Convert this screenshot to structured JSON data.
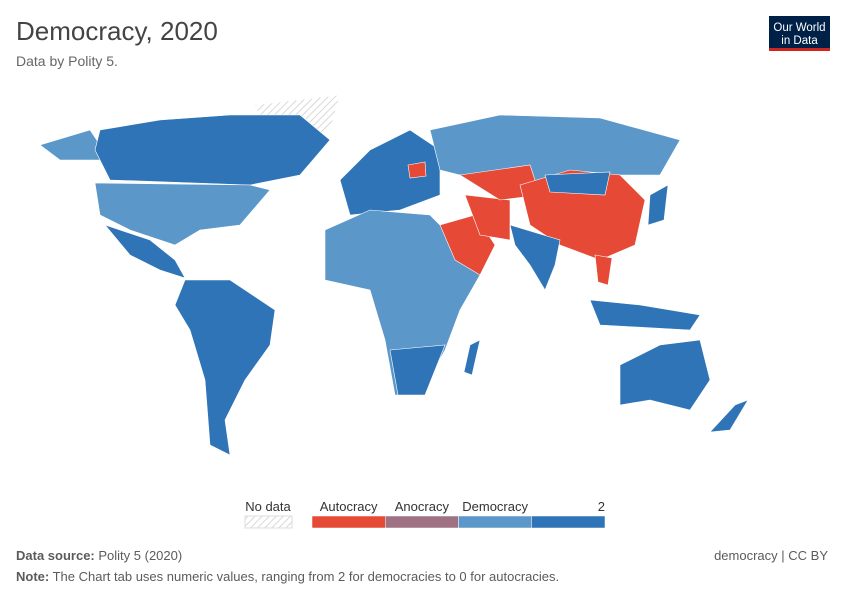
{
  "header": {
    "title": "Democracy, 2020",
    "subtitle": "Data by Polity 5."
  },
  "logo": {
    "lines": [
      "Our World",
      "in Data"
    ]
  },
  "legend": {
    "no_data": "No data",
    "bins": [
      {
        "label": "Autocracy",
        "color": "#e64a36"
      },
      {
        "label": "Anocracy",
        "color": "#9e7282"
      },
      {
        "label": "Democracy",
        "color": "#5b97c9"
      },
      {
        "label": null,
        "color": "#2f74b6"
      }
    ],
    "end_label": 2
  },
  "footer": {
    "source_key": "Data source:",
    "source": "Polity 5 (2020)",
    "license": "democracy | CC BY",
    "note_key": "Note:",
    "note": "The Chart tab uses numeric values, ranging from 2 for democracies to 0 for autocracies."
  }
}
